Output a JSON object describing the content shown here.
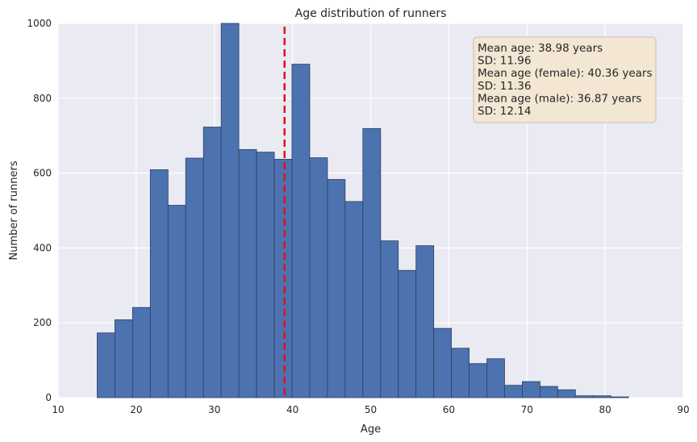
{
  "chart_data": {
    "type": "bar",
    "title": "Age distribution of runners",
    "xlabel": "Age",
    "ylabel": "Number of runners",
    "xlim": [
      10,
      90
    ],
    "ylim": [
      0,
      1000
    ],
    "xticks": [
      "10",
      "20",
      "30",
      "40",
      "50",
      "60",
      "70",
      "80",
      "90"
    ],
    "yticks": [
      "0",
      "200",
      "400",
      "600",
      "800",
      "1000"
    ],
    "grid": true,
    "bin_edges": [
      15,
      17.27,
      19.53,
      21.8,
      24.07,
      26.33,
      28.6,
      30.87,
      33.13,
      35.4,
      37.67,
      39.93,
      42.2,
      44.47,
      46.73,
      49,
      51.27,
      53.53,
      55.8,
      58.07,
      60.33,
      62.6,
      64.87,
      67.13,
      69.4,
      71.67,
      73.93,
      76.2,
      78.47,
      80.73,
      83
    ],
    "values": [
      173,
      208,
      241,
      609,
      514,
      640,
      723,
      1000,
      663,
      656,
      637,
      891,
      641,
      583,
      524,
      719,
      419,
      340,
      406,
      185,
      132,
      91,
      104,
      33,
      43,
      30,
      21,
      5,
      5,
      2
    ],
    "bar_color": "#4c72b0",
    "mean_line": {
      "x": 38.98,
      "color": "#e3101f",
      "style": "dashed"
    },
    "stats_box": {
      "lines": [
        "Mean age: 38.98 years",
        "SD: 11.96",
        "Mean age (female): 40.36 years",
        "SD: 11.36",
        "Mean age (male): 36.87 years",
        "SD: 12.14"
      ],
      "placement": "top-right",
      "background": "#f3e6d3"
    },
    "background": "#eaeaf2"
  }
}
